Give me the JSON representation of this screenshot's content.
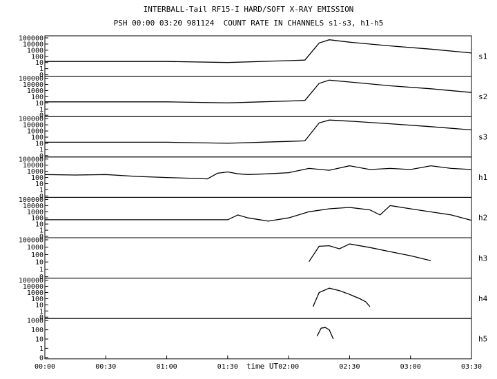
{
  "chart_data": {
    "type": "line",
    "title": "INTERBALL-Tail RF15-I HARD/SOFT X-RAY EMISSION",
    "subtitle": "PSH 00:00 03:20 981124  COUNT RATE IN CHANNELS s1-s3, h1-h5",
    "xlabel": "time UT",
    "x_ticks": [
      "00:00",
      "00:30",
      "01:00",
      "01:30",
      "02:00",
      "02:30",
      "03:00",
      "03:30"
    ],
    "x_range_minutes": [
      0,
      210
    ],
    "y_scale": "log",
    "grid": false,
    "panels": [
      {
        "name": "s1",
        "yticks": [
          "100000",
          "10000",
          "1000",
          "100",
          "10",
          "1",
          "0"
        ],
        "series_minutes": [
          0,
          30,
          60,
          90,
          120,
          128,
          135,
          140,
          150,
          170,
          190,
          210
        ],
        "series_values": [
          15,
          15,
          15,
          10,
          20,
          25,
          15000,
          50000,
          20000,
          5000,
          1500,
          350
        ]
      },
      {
        "name": "s2",
        "yticks": [
          "100000",
          "10000",
          "1000",
          "100",
          "10",
          "1",
          "0"
        ],
        "series_minutes": [
          0,
          30,
          60,
          90,
          120,
          128,
          135,
          140,
          150,
          170,
          190,
          210
        ],
        "series_values": [
          15,
          15,
          15,
          10,
          20,
          25,
          15000,
          50000,
          25000,
          6000,
          2000,
          500
        ]
      },
      {
        "name": "s3",
        "yticks": [
          "100000",
          "10000",
          "1000",
          "100",
          "10",
          "1",
          "0"
        ],
        "series_minutes": [
          0,
          30,
          60,
          90,
          120,
          128,
          135,
          140,
          150,
          170,
          190,
          210
        ],
        "series_values": [
          15,
          15,
          15,
          10,
          20,
          25,
          20000,
          60000,
          40000,
          15000,
          5000,
          1500
        ]
      },
      {
        "name": "h1",
        "yticks": [
          "100000",
          "10000",
          "1000",
          "100",
          "10",
          "1",
          "0"
        ],
        "series_minutes": [
          0,
          15,
          30,
          45,
          60,
          75,
          80,
          85,
          90,
          95,
          100,
          110,
          120,
          130,
          140,
          150,
          160,
          170,
          180,
          190,
          200,
          210
        ],
        "series_values": [
          300,
          250,
          300,
          150,
          100,
          70,
          60,
          500,
          800,
          400,
          300,
          400,
          600,
          3000,
          1500,
          8000,
          2000,
          3000,
          2000,
          8000,
          3000,
          2000
        ]
      },
      {
        "name": "h2",
        "yticks": [
          "100000",
          "10000",
          "1000",
          "100",
          "10",
          "1",
          "0"
        ],
        "series_minutes": [
          0,
          30,
          60,
          90,
          95,
          100,
          110,
          120,
          130,
          140,
          150,
          160,
          165,
          170,
          180,
          200,
          210
        ],
        "series_values": [
          50,
          50,
          50,
          50,
          300,
          100,
          30,
          100,
          1000,
          3000,
          5000,
          2000,
          300,
          10000,
          3000,
          300,
          40
        ]
      },
      {
        "name": "h3",
        "yticks": [
          "100000",
          "1000",
          "100",
          "10",
          "1",
          "0"
        ],
        "series_minutes": [
          130,
          135,
          140,
          145,
          150,
          160,
          170,
          180,
          190
        ],
        "series_values": [
          20,
          8000,
          10000,
          3000,
          20000,
          5000,
          1000,
          200,
          30
        ]
      },
      {
        "name": "h4",
        "yticks": [
          "100000",
          "10000",
          "1000",
          "100",
          "10",
          "1",
          "0"
        ],
        "series_minutes": [
          132,
          135,
          140,
          145,
          150,
          155,
          158,
          160
        ],
        "series_values": [
          5,
          1000,
          5000,
          2000,
          500,
          100,
          30,
          5
        ]
      },
      {
        "name": "h5",
        "yticks": [
          "1000",
          "100",
          "10",
          "1",
          "0"
        ],
        "series_minutes": [
          134,
          136,
          138,
          140,
          142
        ],
        "series_values": [
          20,
          150,
          180,
          100,
          10
        ]
      }
    ]
  }
}
